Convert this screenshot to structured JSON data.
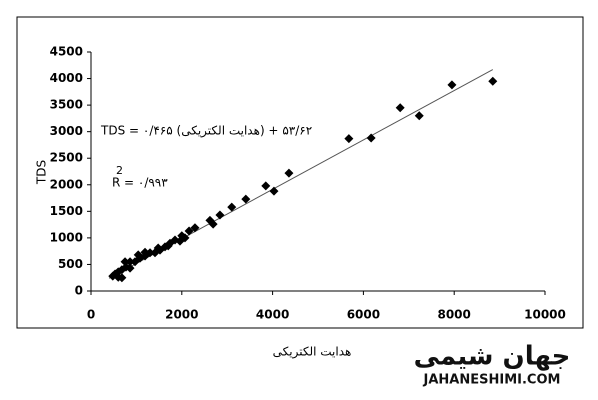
{
  "chart_data": {
    "type": "scatter",
    "x": [
      8850,
      7950,
      6810,
      7230,
      6170,
      5680,
      4360,
      3850,
      4030,
      3410,
      3100,
      2840,
      2620,
      2690,
      2290,
      2160,
      2070,
      1960,
      1850,
      1740,
      1630,
      1520,
      1410,
      1300,
      1190,
      1080,
      970,
      860,
      770,
      680,
      600,
      480,
      530,
      750,
      860,
      1040,
      1190,
      1480,
      1700,
      2000,
      600,
      680
    ],
    "values": [
      3950,
      3880,
      3450,
      3300,
      2880,
      2870,
      2220,
      1980,
      1880,
      1730,
      1580,
      1430,
      1330,
      1260,
      1190,
      1130,
      1000,
      940,
      960,
      900,
      830,
      770,
      720,
      720,
      660,
      620,
      550,
      550,
      450,
      400,
      360,
      280,
      320,
      550,
      430,
      680,
      730,
      810,
      850,
      1040,
      260,
      250
    ],
    "color": "#000000",
    "trendline": {
      "x": [
        400,
        8850
      ],
      "y": [
        240,
        4170
      ],
      "color": "#555555"
    },
    "xlim": [
      0,
      10000
    ],
    "xticks": [
      0,
      2000,
      4000,
      6000,
      8000,
      10000
    ],
    "ylim": [
      0,
      4500
    ],
    "yticks": [
      0,
      500,
      1000,
      1500,
      2000,
      2500,
      3000,
      3500,
      4000,
      4500
    ],
    "x_label": "هدایت الکتریکی",
    "y_label": "TDS",
    "equation": "TDS = ۰/۴۶۵ (هدایت الکتریکی) + ۵۳/۶۲",
    "r_squared": {
      "symbol": "R",
      "superscript": "2",
      "value": "= ۰/۹۹۳"
    }
  },
  "watermark": {
    "logo": "جهان شیمی",
    "url": "JAHANESHIMI.COM"
  }
}
